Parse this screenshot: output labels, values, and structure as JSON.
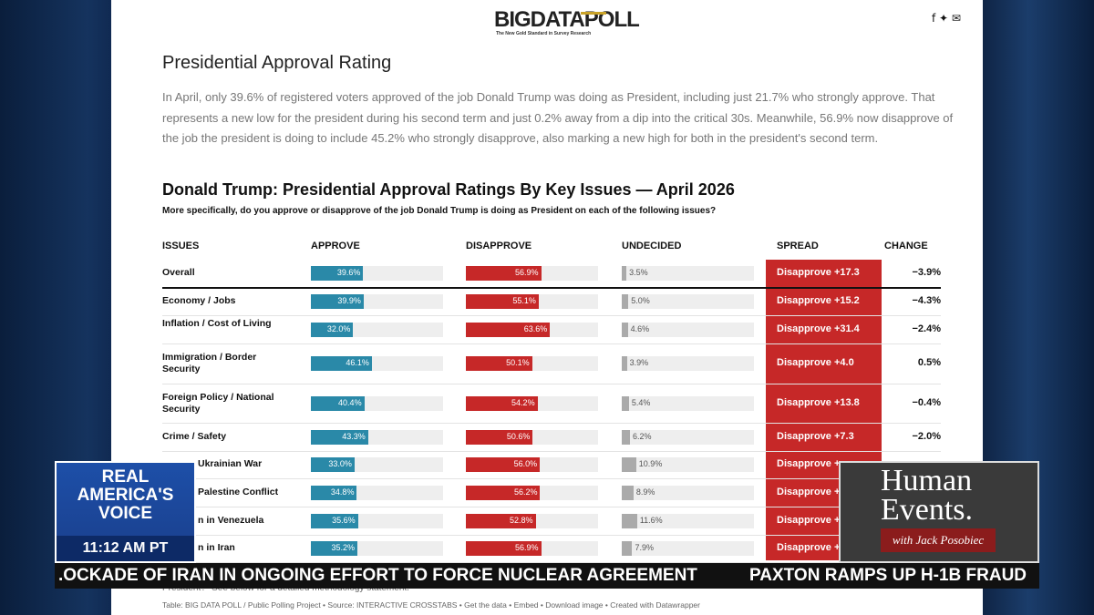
{
  "header": {
    "logo": "BIGDATAPOLL",
    "tagline": "The New Gold Standard in Survey Research"
  },
  "article": {
    "title": "Presidential Approval Rating",
    "paragraph": "In April, only 39.6% of registered voters approved of the job Donald Trump was doing as President, including just 21.7% who strongly approve. That represents a new low for the president during his second term and just 0.2% away from a dip into the critical 30s. Meanwhile, 56.9% now disapprove of the job the president is doing to include 45.2% who strongly disapprove, also marking a new high for both in the president's second term."
  },
  "table": {
    "title": "Donald Trump: Presidential Approval Ratings By Key Issues — April 2026",
    "subtitle": "More specifically, do you approve or disapprove of the job Donald Trump is doing as President on each of the following issues?",
    "columns": [
      "ISSUES",
      "APPROVE",
      "DISAPPROVE",
      "UNDECIDED",
      "SPREAD",
      "CHANGE"
    ],
    "rows": [
      [
        "Overall",
        "39.6%",
        "56.9%",
        "3.5%",
        "Disapprove +17.3",
        "−3.9%"
      ],
      [
        "Economy / Jobs",
        "39.9%",
        "55.1%",
        "5.0%",
        "Disapprove +15.2",
        "−4.3%"
      ],
      [
        "Inflation / Cost of Living",
        "32.0%",
        "63.6%",
        "4.6%",
        "Disapprove +31.4",
        "−2.4%"
      ],
      [
        "Immigration / Border Security",
        "46.1%",
        "50.1%",
        "3.9%",
        "Disapprove +4.0",
        "0.5%"
      ],
      [
        "Foreign Policy / National Security",
        "40.4%",
        "54.2%",
        "5.4%",
        "Disapprove +13.8",
        "−0.4%"
      ],
      [
        "Crime / Safety",
        "43.3%",
        "50.6%",
        "6.2%",
        "Disapprove +7.3",
        "−2.0%"
      ],
      [
        "Ukrainian War",
        "33.0%",
        "56.0%",
        "10.9%",
        "Disapprove +"
      ],
      [
        "Palestine Conflict",
        "34.8%",
        "56.2%",
        "8.9%",
        "Disapprove +"
      ],
      [
        "n in Venezuela",
        "35.6%",
        "52.8%",
        "11.6%",
        "Disapprove +"
      ],
      [
        "n in Iran",
        "35.2%",
        "56.9%",
        "7.9%",
        "Disapprove +"
      ]
    ]
  },
  "footer": {
    "note": "President?\" See below for a detailed methodology statement.",
    "credit": "Table: BIG DATA POLL / Public Polling Project • Source: INTERACTIVE CROSSTABS • Get the data • Embed • Download image • Created with Datawrapper"
  },
  "overlay": {
    "network": [
      "REAL",
      "AMERICA'S",
      "VOICE"
    ],
    "time": "11:12 AM PT",
    "ticker_left": ".OCKADE OF IRAN IN ONGOING EFFORT TO FORCE NUCLEAR AGREEMENT",
    "ticker_right": "PAXTON RAMPS UP H-1B FRAUD",
    "show": [
      "Human",
      "Events."
    ],
    "host": "with Jack Posobiec"
  }
}
